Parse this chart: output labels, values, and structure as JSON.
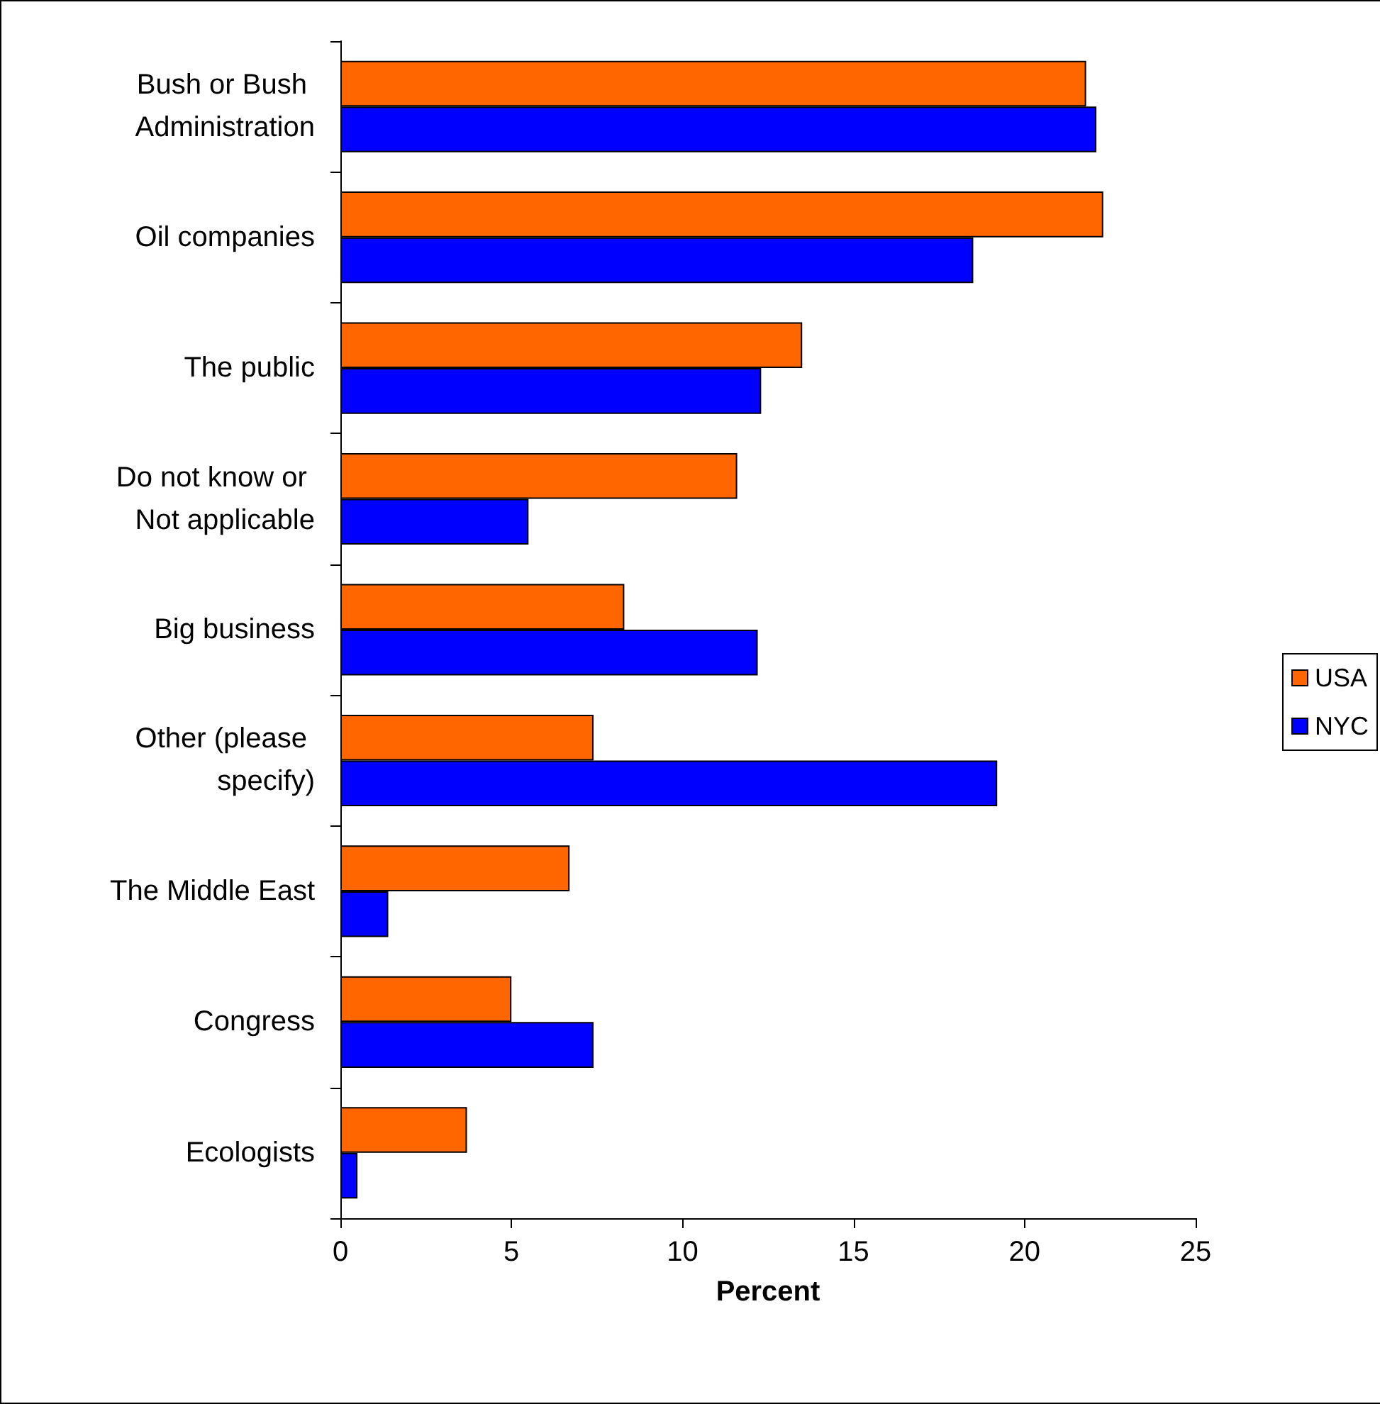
{
  "chart_data": {
    "type": "bar",
    "orientation": "horizontal",
    "xlabel": "Percent",
    "categories": [
      "Bush or Bush Administration",
      "Oil companies",
      "The public",
      "Do not know or Not applicable",
      "Big business",
      "Other (please specify)",
      "The Middle East",
      "Congress",
      "Ecologists"
    ],
    "series": [
      {
        "name": "USA",
        "color": "#ff6600",
        "values": [
          21.8,
          22.3,
          13.5,
          11.6,
          8.3,
          7.4,
          6.7,
          5.0,
          3.7
        ]
      },
      {
        "name": "NYC",
        "color": "#0000ff",
        "values": [
          22.1,
          18.5,
          12.3,
          5.5,
          12.2,
          19.2,
          1.4,
          7.4,
          0.5
        ]
      }
    ],
    "xlim": [
      0,
      25
    ],
    "xticks": [
      0,
      5,
      10,
      15,
      20,
      25
    ],
    "grid": false,
    "legend": "right"
  }
}
